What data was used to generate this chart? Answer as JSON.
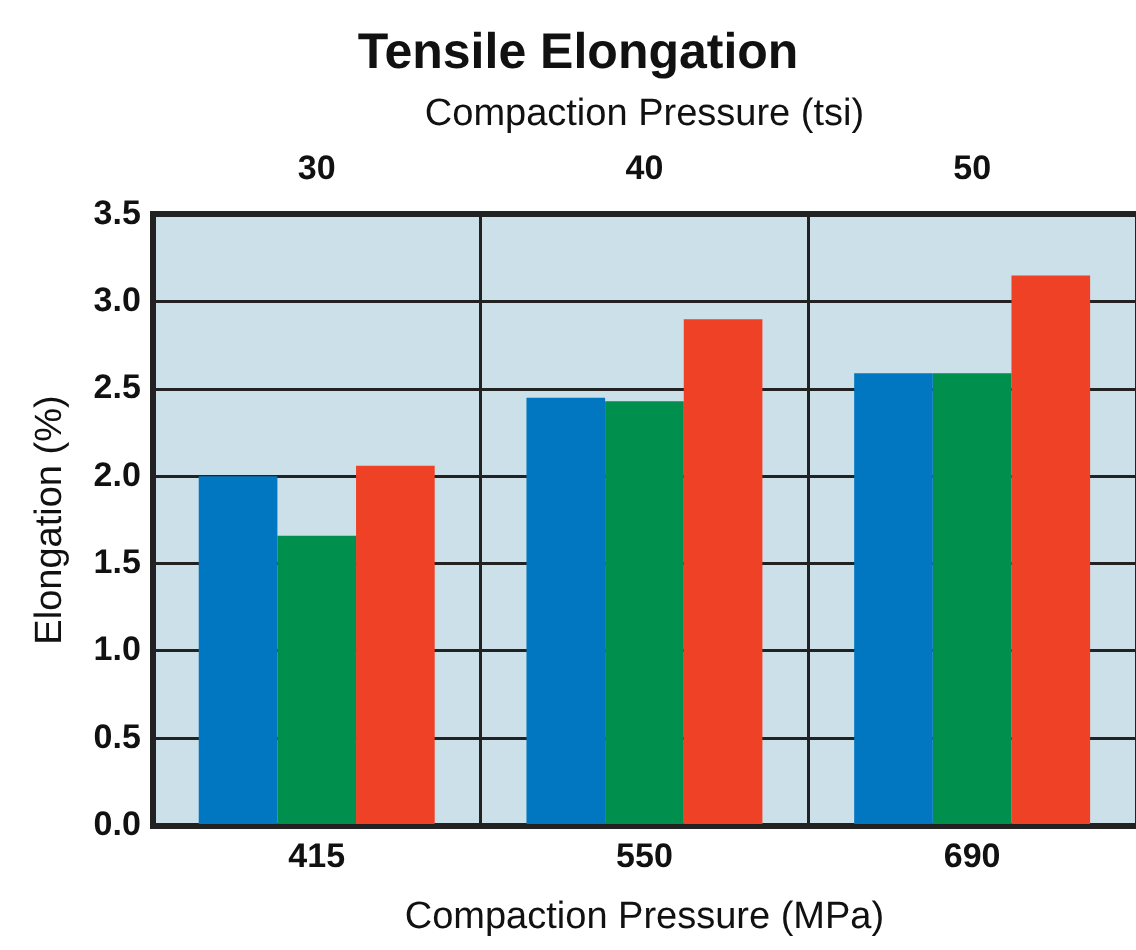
{
  "chart_data": {
    "type": "bar",
    "title": "Tensile Elongation",
    "categories": [
      "415",
      "550",
      "690"
    ],
    "xlabel": "Compaction Pressure (MPa)",
    "ylabel": "Elongation (%)",
    "x2label": "Compaction Pressure (tsi)",
    "x2lim": [
      25,
      55
    ],
    "x2ticks": [
      30,
      40,
      50
    ],
    "series": [
      {
        "color": "#0077c0",
        "values": [
          2.0,
          2.45,
          2.59
        ]
      },
      {
        "color": "#008f4c",
        "values": [
          1.66,
          2.43,
          2.59
        ]
      },
      {
        "color": "#ee4126",
        "values": [
          2.06,
          2.9,
          3.15
        ]
      }
    ],
    "ylim": [
      0,
      3.5
    ],
    "yticks": [
      {
        "value": 0,
        "label": "0.0"
      },
      0.5,
      {
        "value": 1,
        "label": "1.0"
      },
      1.5,
      {
        "value": 2,
        "label": "2.0"
      },
      2.5,
      {
        "value": 3,
        "label": "3.0"
      },
      3.5
    ],
    "grid": true,
    "legend": false
  }
}
